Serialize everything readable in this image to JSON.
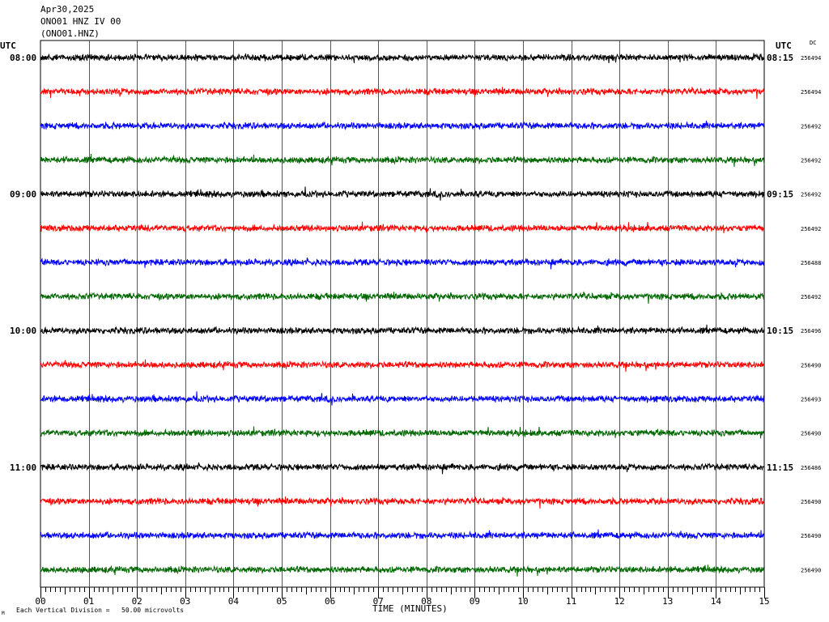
{
  "header": {
    "date": "Apr30,2025",
    "station": "ONO01 HNZ IV 00",
    "channel": "(ONO01.HNZ)"
  },
  "utc_label_left": "UTC",
  "utc_label_right": "UTC",
  "dc_label": "DC",
  "xlabel": "TIME (MINUTES)",
  "footer": "Each Vertical Division =   50.00 microvolts",
  "corner_mark": "M",
  "chart_data": {
    "type": "line",
    "title": "",
    "xlabel": "TIME (MINUTES)",
    "ylabel": "",
    "xlim": [
      0,
      15
    ],
    "x_ticks": [
      "00",
      "01",
      "02",
      "03",
      "04",
      "05",
      "06",
      "07",
      "08",
      "09",
      "10",
      "11",
      "12",
      "13",
      "14",
      "15"
    ],
    "grid": true,
    "trace_colors": [
      "#000000",
      "#ff0000",
      "#0000ff",
      "#006600"
    ],
    "left_time_labels": [
      {
        "row": 0,
        "label": "08:00"
      },
      {
        "row": 4,
        "label": "09:00"
      },
      {
        "row": 8,
        "label": "10:00"
      },
      {
        "row": 12,
        "label": "11:00"
      }
    ],
    "right_time_labels": [
      {
        "row": 0,
        "label": "08:15"
      },
      {
        "row": 4,
        "label": "09:15"
      },
      {
        "row": 8,
        "label": "10:15"
      },
      {
        "row": 12,
        "label": "11:15"
      }
    ],
    "dc_values": [
      "256494",
      "256494",
      "256492",
      "256492",
      "256492",
      "256492",
      "256488",
      "256492",
      "256496",
      "256490",
      "256493",
      "256490",
      "256486",
      "256490",
      "256490",
      "256490"
    ],
    "vertical_division_microvolts": 50.0
  }
}
